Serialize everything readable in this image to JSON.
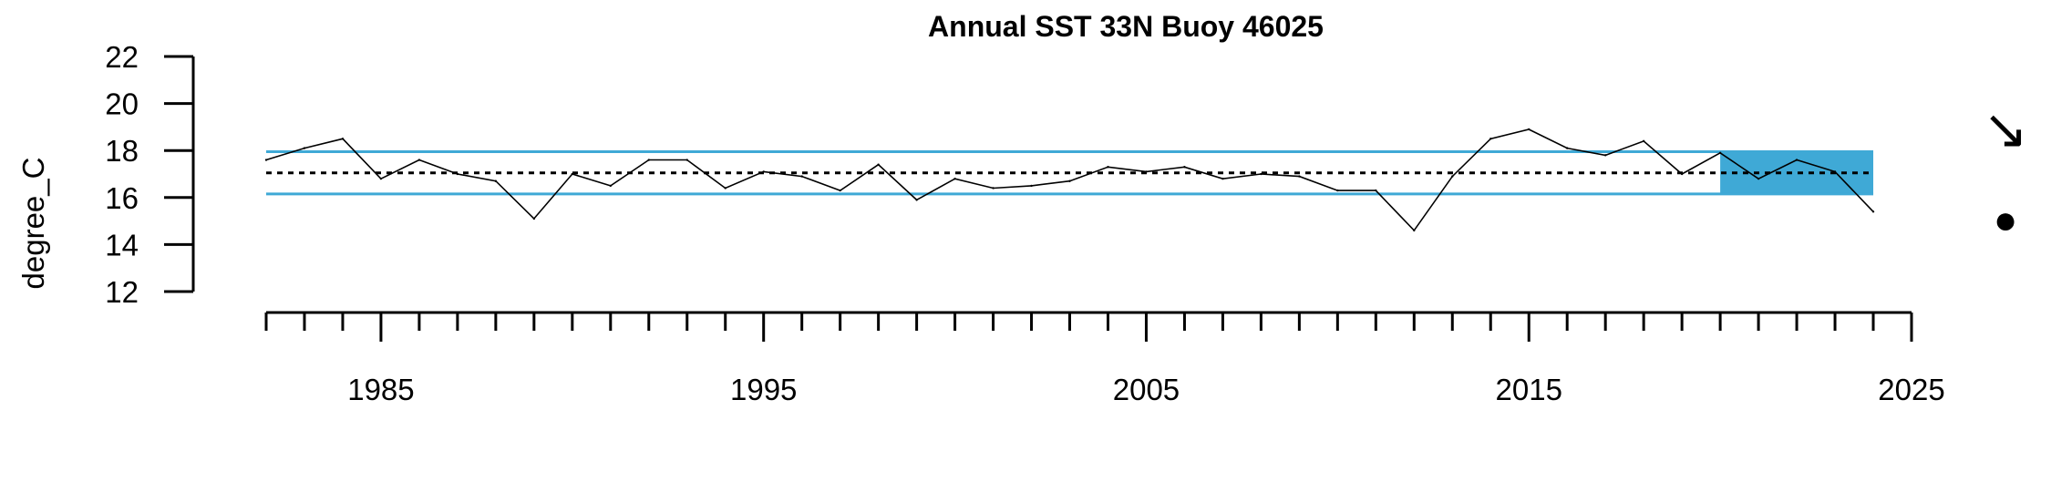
{
  "chart_data": {
    "type": "line",
    "title": "Annual SST 33N Buoy 46025",
    "xlabel": "",
    "ylabel": "degree_C",
    "xlim": [
      1982,
      2025
    ],
    "ylim": [
      12,
      22
    ],
    "y_ticks": [
      12,
      14,
      16,
      18,
      20,
      22
    ],
    "x_ticks": [
      1985,
      1995,
      2005,
      2015,
      2025
    ],
    "x_minor_ticks_every": 1,
    "grid": false,
    "series": [
      {
        "x": [
          1982,
          1983,
          1984,
          1985,
          1986,
          1987,
          1988,
          1989,
          1990,
          1991,
          1992,
          1993,
          1994,
          1995,
          1996,
          1997,
          1998,
          1999,
          2000,
          2001,
          2002,
          2003,
          2004,
          2005,
          2006,
          2007,
          2008,
          2009,
          2010,
          2011,
          2012,
          2013,
          2014,
          2015,
          2016,
          2017,
          2018,
          2019,
          2020,
          2021,
          2022,
          2023,
          2024
        ],
        "values": [
          17.6,
          18.1,
          18.5,
          16.8,
          17.6,
          17.0,
          16.7,
          15.1,
          17.0,
          16.5,
          17.6,
          17.6,
          16.4,
          17.1,
          16.9,
          16.3,
          17.4,
          15.9,
          16.8,
          16.4,
          16.5,
          16.7,
          17.3,
          17.1,
          17.3,
          16.8,
          17.0,
          16.9,
          16.3,
          16.3,
          14.6,
          16.9,
          18.5,
          18.9,
          18.1,
          17.8,
          18.4,
          17.0,
          17.9,
          16.8,
          17.6,
          17.1,
          15.4
        ],
        "color": "#000000"
      }
    ],
    "reference_lines": {
      "mean": 17.05,
      "upper": 17.95,
      "lower": 16.15,
      "mean_style": "dotted",
      "band_color": "#3fa9d6"
    },
    "highlight_period": {
      "x_start": 2020,
      "x_end": 2024,
      "color": "#3fa9d6"
    },
    "trend_symbol": "↘",
    "status_symbol": "●"
  }
}
